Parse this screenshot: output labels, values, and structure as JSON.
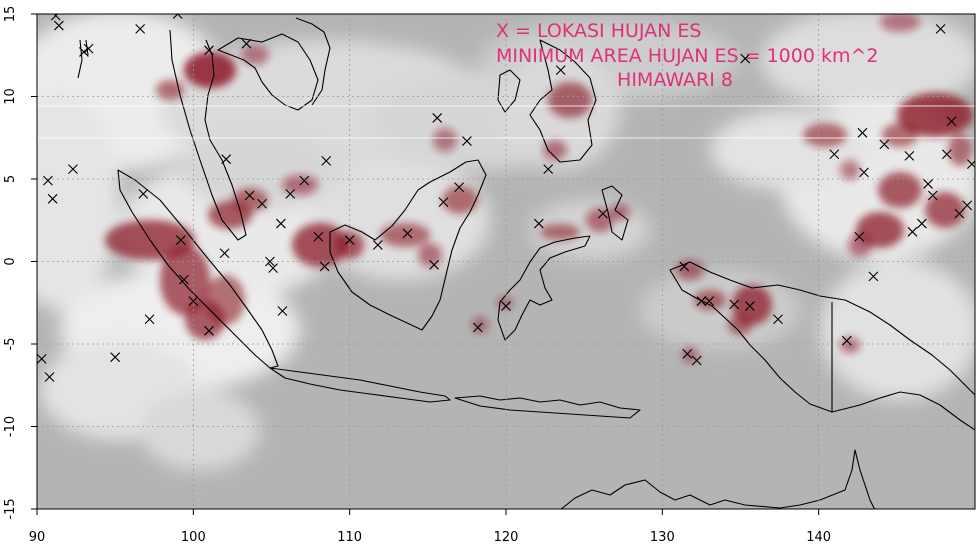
{
  "map": {
    "annotations": [
      "X = LOKASI HUJAN ES",
      "MINIMUM AREA HUJAN ES = 1000 km^2",
      "HIMAWARI 8"
    ],
    "annotation_color": "#e0307a",
    "x_axis": {
      "ticks": [
        "90",
        "100",
        "110",
        "120",
        "130",
        "140"
      ],
      "range": [
        90,
        150
      ]
    },
    "y_axis": {
      "ticks": [
        "15",
        "10",
        "5",
        "0",
        "-5",
        "-10",
        "-15"
      ],
      "range": [
        -15,
        15
      ]
    },
    "grid": "dotted",
    "colors": {
      "background": "#b4b4b4",
      "cloud": "#ececec",
      "hail_cloud": "#8c1a28",
      "coastline": "#000000"
    },
    "hail_locations": [
      [
        91.2,
        14.9
      ],
      [
        91.4,
        14.3
      ],
      [
        93.0,
        12.7
      ],
      [
        93.3,
        12.9
      ],
      [
        96.6,
        14.1
      ],
      [
        99.0,
        15.0
      ],
      [
        101.0,
        12.8
      ],
      [
        103.4,
        13.2
      ],
      [
        90.7,
        4.9
      ],
      [
        91.0,
        3.8
      ],
      [
        92.3,
        5.6
      ],
      [
        96.8,
        4.1
      ],
      [
        102.1,
        6.2
      ],
      [
        103.6,
        4.0
      ],
      [
        104.4,
        3.5
      ],
      [
        106.2,
        4.1
      ],
      [
        107.1,
        4.9
      ],
      [
        108.5,
        6.1
      ],
      [
        99.2,
        1.3
      ],
      [
        99.4,
        -1.1
      ],
      [
        102.0,
        0.5
      ],
      [
        104.9,
        0.0
      ],
      [
        105.1,
        -0.4
      ],
      [
        105.6,
        2.3
      ],
      [
        108.0,
        1.5
      ],
      [
        110.0,
        1.3
      ],
      [
        111.8,
        1.0
      ],
      [
        113.7,
        1.7
      ],
      [
        97.2,
        -3.5
      ],
      [
        100.0,
        -2.4
      ],
      [
        101.0,
        -4.2
      ],
      [
        95.0,
        -5.8
      ],
      [
        90.3,
        -5.9
      ],
      [
        90.8,
        -7.0
      ],
      [
        105.7,
        -3.0
      ],
      [
        108.4,
        -0.3
      ],
      [
        115.4,
        -0.2
      ],
      [
        116.0,
        3.6
      ],
      [
        117.0,
        4.5
      ],
      [
        115.6,
        8.7
      ],
      [
        117.5,
        7.3
      ],
      [
        118.2,
        -4.0
      ],
      [
        120.0,
        -2.7
      ],
      [
        122.1,
        2.3
      ],
      [
        126.2,
        2.9
      ],
      [
        123.5,
        11.6
      ],
      [
        122.7,
        5.6
      ],
      [
        131.4,
        -0.3
      ],
      [
        132.5,
        -2.4
      ],
      [
        133.0,
        -2.4
      ],
      [
        134.6,
        -2.6
      ],
      [
        135.6,
        -2.7
      ],
      [
        137.4,
        -3.5
      ],
      [
        131.6,
        -5.6
      ],
      [
        132.2,
        -6.0
      ],
      [
        141.8,
        -4.8
      ],
      [
        135.3,
        12.3
      ],
      [
        142.8,
        7.8
      ],
      [
        142.9,
        5.4
      ],
      [
        144.2,
        7.1
      ],
      [
        145.8,
        6.4
      ],
      [
        147.0,
        4.7
      ],
      [
        147.3,
        4.0
      ],
      [
        148.5,
        8.5
      ],
      [
        148.2,
        6.5
      ],
      [
        149.0,
        2.9
      ],
      [
        149.5,
        3.4
      ],
      [
        149.8,
        5.9
      ],
      [
        146.6,
        2.3
      ],
      [
        147.8,
        14.1
      ],
      [
        143.5,
        -0.9
      ],
      [
        141.0,
        6.5
      ],
      [
        146.0,
        1.8
      ],
      [
        142.6,
        1.5
      ]
    ]
  }
}
